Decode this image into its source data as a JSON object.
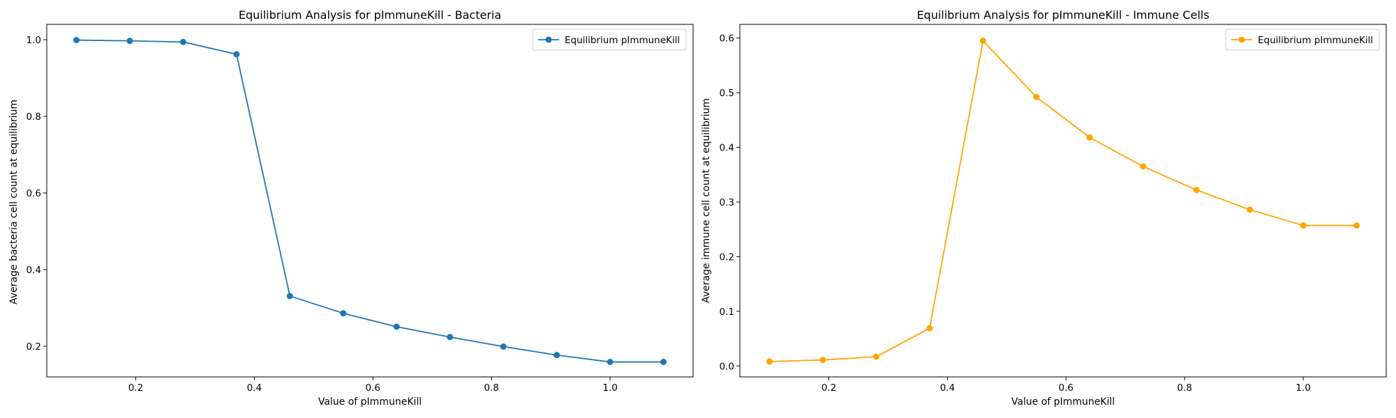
{
  "chart_data": [
    {
      "type": "line",
      "title": "Equilibrium Analysis for pImmuneKill - Bacteria",
      "xlabel": "Value of pImmuneKill",
      "ylabel": "Average bacteria cell count at equilibrium",
      "xlim": [
        0.05,
        1.14
      ],
      "ylim": [
        0.12,
        1.04
      ],
      "xticks": [
        "0.2",
        "0.4",
        "0.6",
        "0.8",
        "1.0"
      ],
      "yticks": [
        "0.2",
        "0.4",
        "0.6",
        "0.8",
        "1.0"
      ],
      "legend": "top-right",
      "grid": false,
      "x": [
        0.1,
        0.19,
        0.28,
        0.37,
        0.46,
        0.55,
        0.64,
        0.73,
        0.82,
        0.91,
        1.0,
        1.09
      ],
      "series": [
        {
          "name": "Equilibrium pImmuneKill",
          "color": "#1f77b4",
          "values": [
            0.999,
            0.997,
            0.994,
            0.962,
            0.331,
            0.286,
            0.251,
            0.224,
            0.199,
            0.177,
            0.159,
            0.159
          ]
        }
      ]
    },
    {
      "type": "line",
      "title": "Equilibrium Analysis for pImmuneKill - Immune Cells",
      "xlabel": "Value of pImmuneKill",
      "ylabel": "Average immune cell count at equilibrium",
      "xlim": [
        0.05,
        1.14
      ],
      "ylim": [
        -0.02,
        0.625
      ],
      "xticks": [
        "0.2",
        "0.4",
        "0.6",
        "0.8",
        "1.0"
      ],
      "yticks": [
        "0.0",
        "0.1",
        "0.2",
        "0.3",
        "0.4",
        "0.5",
        "0.6"
      ],
      "legend": "top-right",
      "grid": false,
      "x": [
        0.1,
        0.19,
        0.28,
        0.37,
        0.46,
        0.55,
        0.64,
        0.73,
        0.82,
        0.91,
        1.0,
        1.09
      ],
      "series": [
        {
          "name": "Equilibrium pImmuneKill",
          "color": "#ffa500",
          "values": [
            0.008,
            0.011,
            0.017,
            0.069,
            0.595,
            0.492,
            0.418,
            0.365,
            0.322,
            0.286,
            0.257,
            0.257
          ]
        }
      ]
    }
  ]
}
